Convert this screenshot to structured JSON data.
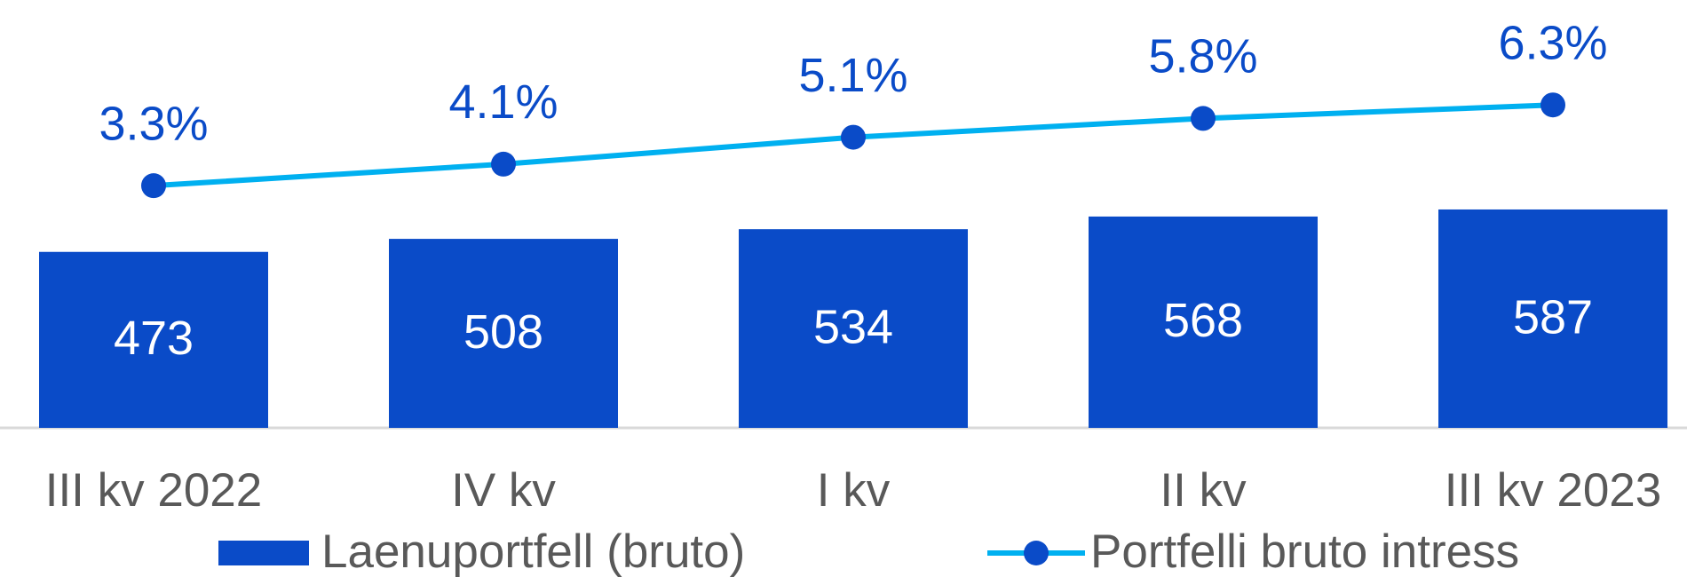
{
  "chart_data": {
    "type": "bar_line",
    "categories": [
      "III kv 2022",
      "IV kv",
      "I kv",
      "II kv",
      "III kv 2023"
    ],
    "series": [
      {
        "name": "Laenuportfell (bruto)",
        "type": "bar",
        "color": "#0a4bc8",
        "values": [
          473,
          508,
          534,
          568,
          587
        ]
      },
      {
        "name": "Portfelli bruto intress",
        "type": "line",
        "axis": "y2",
        "color": "#00b0f0",
        "marker_color": "#0a4bc8",
        "values": [
          3.3,
          4.1,
          5.1,
          5.8,
          6.3
        ],
        "value_labels": [
          "3.3%",
          "4.1%",
          "5.1%",
          "5.8%",
          "6.3%"
        ]
      }
    ],
    "ylim": [
      0,
      1150
    ],
    "y2lim": [
      -5.7,
      10.2
    ],
    "legend": "bottom"
  }
}
